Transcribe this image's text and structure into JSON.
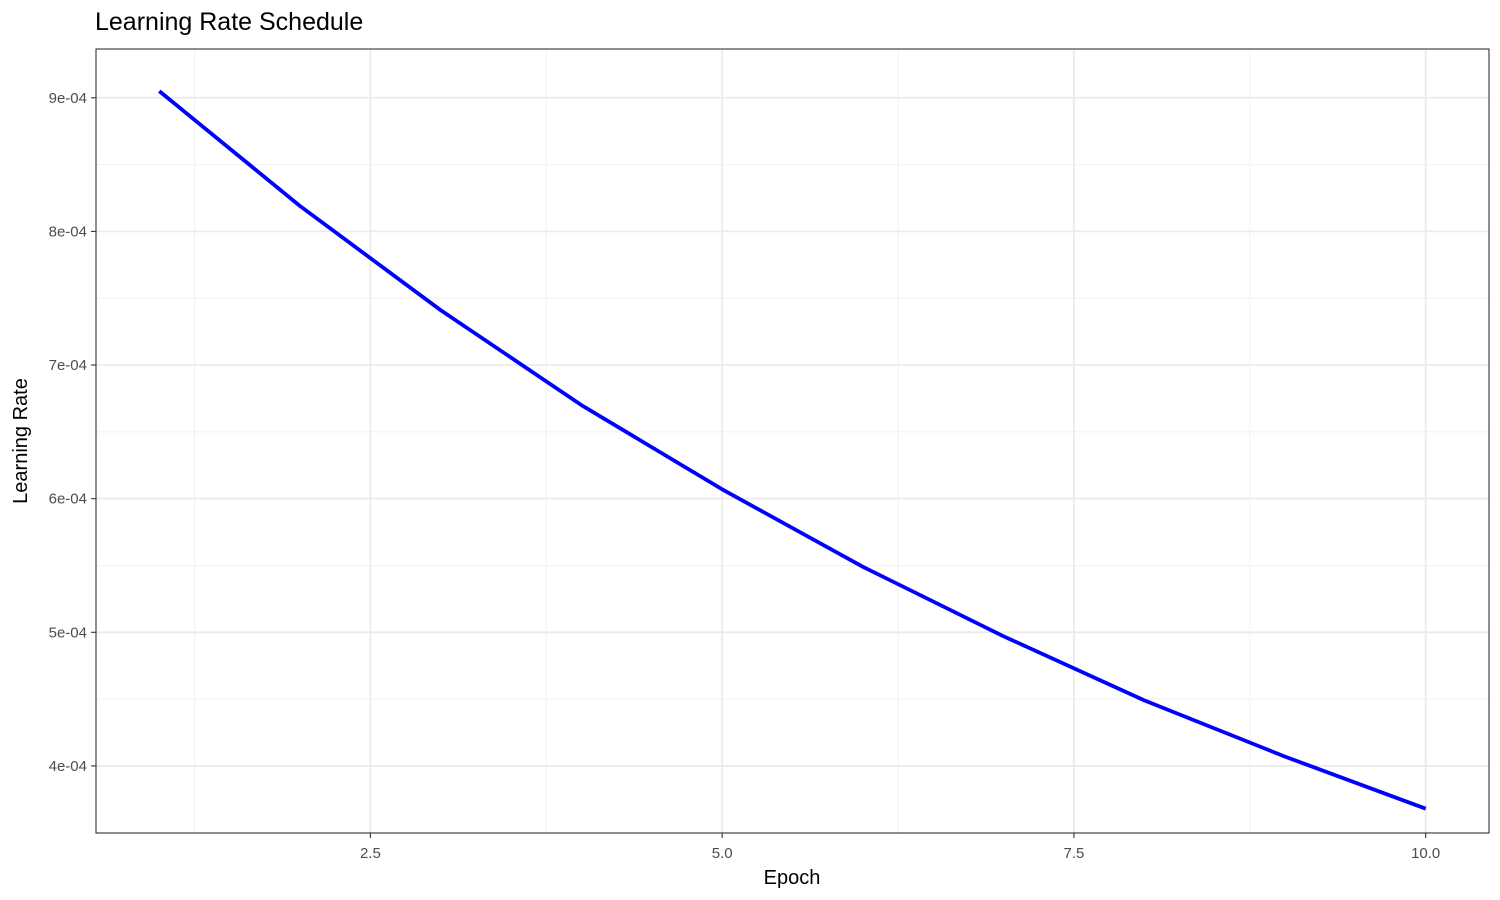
{
  "chart_data": {
    "type": "line",
    "title": "Learning Rate Schedule",
    "xlabel": "Epoch",
    "ylabel": "Learning Rate",
    "xlim": [
      0.55,
      10.45
    ],
    "ylim": [
      0.0003498,
      0.0009365
    ],
    "x_ticks": [
      2.5,
      5.0,
      7.5,
      10.0
    ],
    "x_tick_labels": [
      "2.5",
      "5.0",
      "7.5",
      "10.0"
    ],
    "y_ticks": [
      0.0004,
      0.0005,
      0.0006,
      0.0007,
      0.0008,
      0.0009
    ],
    "y_tick_labels": [
      "4e-04",
      "5e-04",
      "6e-04",
      "7e-04",
      "8e-04",
      "9e-04"
    ],
    "grid": true,
    "legend": "none",
    "series": [
      {
        "color": "#0000ff",
        "x": [
          1,
          2,
          3,
          4,
          5,
          6,
          7,
          8,
          9,
          10
        ],
        "values": [
          0.000905,
          0.000819,
          0.000741,
          0.00067,
          0.000607,
          0.000549,
          0.000497,
          0.000449,
          0.000407,
          0.000368
        ]
      }
    ]
  }
}
